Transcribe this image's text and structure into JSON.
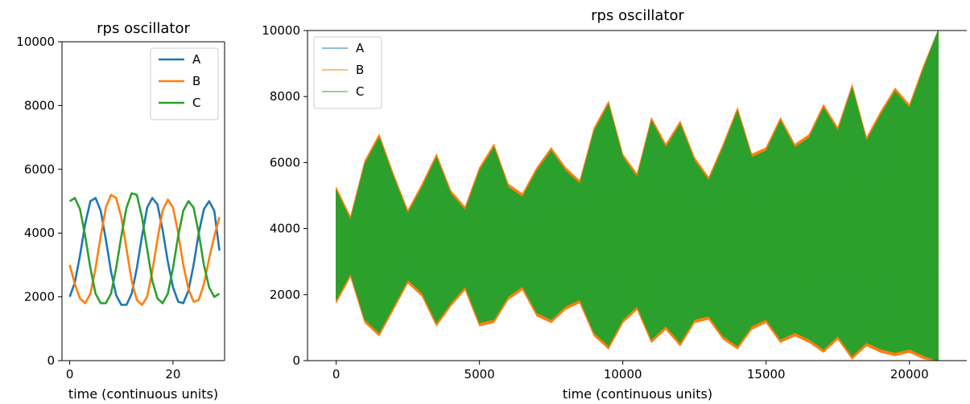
{
  "chart_data": [
    {
      "type": "line",
      "title": "rps oscillator",
      "xlabel": "time (continuous units)",
      "ylabel": "",
      "xlim": [
        -1.5,
        30
      ],
      "ylim": [
        0,
        10000
      ],
      "xticks": [
        0,
        20
      ],
      "yticks": [
        0,
        2000,
        4000,
        6000,
        8000,
        10000
      ],
      "legend_position": "upper right",
      "grid": false,
      "x": [
        0,
        1,
        2,
        3,
        4,
        5,
        6,
        7,
        8,
        9,
        10,
        11,
        12,
        13,
        14,
        15,
        16,
        17,
        18,
        19,
        20,
        21,
        22,
        23,
        24,
        25,
        26,
        27,
        28,
        29
      ],
      "series": [
        {
          "name": "A",
          "color": "#1f77b4",
          "values": [
            2000,
            2450,
            3300,
            4300,
            5000,
            5100,
            4700,
            3800,
            2800,
            2050,
            1750,
            1750,
            2100,
            2900,
            3900,
            4800,
            5100,
            4900,
            4100,
            3100,
            2300,
            1850,
            1800,
            2200,
            3000,
            4000,
            4750,
            5000,
            4700,
            3450
          ]
        },
        {
          "name": "B",
          "color": "#ff7f0e",
          "values": [
            3000,
            2400,
            1950,
            1800,
            2100,
            2900,
            3900,
            4800,
            5200,
            5100,
            4500,
            3500,
            2500,
            1900,
            1750,
            2000,
            2800,
            3800,
            4700,
            5050,
            4800,
            4000,
            3000,
            2250,
            1850,
            1900,
            2400,
            3200,
            3900,
            4500
          ]
        },
        {
          "name": "C",
          "color": "#2ca02c",
          "values": [
            5000,
            5100,
            4750,
            3900,
            2900,
            2100,
            1800,
            1800,
            2100,
            2900,
            3900,
            4800,
            5250,
            5200,
            4500,
            3500,
            2500,
            1950,
            1800,
            2100,
            2900,
            3900,
            4700,
            5000,
            4800,
            4000,
            3000,
            2300,
            2000,
            2100
          ]
        }
      ]
    },
    {
      "type": "line",
      "title": "rps oscillator",
      "xlabel": "time (continuous units)",
      "ylabel": "",
      "xlim": [
        -1000,
        22000
      ],
      "ylim": [
        0,
        10000
      ],
      "xticks": [
        0,
        5000,
        10000,
        15000,
        20000
      ],
      "yticks": [
        0,
        2000,
        4000,
        6000,
        8000,
        10000
      ],
      "legend_position": "upper left",
      "grid": false,
      "note_envelope": "dense oscillation; band bounded by min/max envelope below",
      "x": [
        0,
        500,
        1000,
        1500,
        2000,
        2500,
        3000,
        3500,
        4000,
        4500,
        5000,
        5500,
        6000,
        6500,
        7000,
        7500,
        8000,
        8500,
        9000,
        9500,
        10000,
        10500,
        11000,
        11500,
        12000,
        12500,
        13000,
        13500,
        14000,
        14500,
        15000,
        15500,
        16000,
        16500,
        17000,
        17500,
        18000,
        18500,
        19000,
        19500,
        20000,
        20500,
        21000
      ],
      "series": [
        {
          "name": "A",
          "color": "#1f77b4",
          "upper": [
            5200,
            4300,
            6000,
            6800,
            5600,
            4500,
            5300,
            6200,
            5100,
            4600,
            5800,
            6500,
            5300,
            5000,
            5800,
            6400,
            5800,
            5400,
            7000,
            7800,
            6200,
            5600,
            7300,
            6500,
            7200,
            6100,
            5500,
            6500,
            7600,
            6200,
            6400,
            7300,
            6500,
            6800,
            7700,
            7000,
            8300,
            6700,
            7500,
            8200,
            7700,
            8900,
            10000
          ],
          "lower": [
            1800,
            2600,
            1200,
            800,
            1600,
            2400,
            2000,
            1100,
            1700,
            2200,
            1100,
            1200,
            1900,
            2200,
            1400,
            1200,
            1600,
            1800,
            800,
            400,
            1200,
            1600,
            600,
            1000,
            500,
            1200,
            1300,
            700,
            400,
            1000,
            1200,
            600,
            800,
            600,
            300,
            700,
            100,
            500,
            300,
            200,
            300,
            100,
            0
          ]
        },
        {
          "name": "B",
          "color": "#ff7f0e",
          "upper": [
            5250,
            4350,
            6050,
            6850,
            5650,
            4550,
            5350,
            6250,
            5150,
            4650,
            5850,
            6550,
            5350,
            5050,
            5850,
            6450,
            5850,
            5450,
            7050,
            7850,
            6250,
            5650,
            7350,
            6550,
            7250,
            6150,
            5550,
            6550,
            7650,
            6250,
            6450,
            7350,
            6550,
            6850,
            7750,
            7050,
            8350,
            6750,
            7550,
            8250,
            7750,
            8950,
            10000
          ],
          "lower": [
            1750,
            2550,
            1150,
            750,
            1550,
            2350,
            1950,
            1050,
            1650,
            2150,
            1050,
            1150,
            1850,
            2150,
            1350,
            1150,
            1550,
            1750,
            750,
            350,
            1150,
            1550,
            550,
            950,
            450,
            1150,
            1250,
            650,
            350,
            950,
            1150,
            550,
            750,
            550,
            250,
            650,
            50,
            450,
            250,
            150,
            250,
            50,
            0
          ]
        },
        {
          "name": "C",
          "color": "#2ca02c",
          "upper": [
            5150,
            4250,
            5950,
            6750,
            5550,
            4450,
            5250,
            6150,
            5050,
            4550,
            5750,
            6450,
            5250,
            4950,
            5750,
            6350,
            5750,
            5350,
            6950,
            7750,
            6150,
            5550,
            7250,
            6450,
            7150,
            6050,
            5450,
            6450,
            7550,
            6150,
            6350,
            7250,
            6450,
            6750,
            7650,
            6950,
            8250,
            6650,
            7450,
            8150,
            7650,
            8850,
            10000
          ],
          "lower": [
            1850,
            2650,
            1250,
            850,
            1650,
            2450,
            2050,
            1150,
            1750,
            2250,
            1150,
            1250,
            1950,
            2250,
            1450,
            1250,
            1650,
            1850,
            850,
            450,
            1250,
            1650,
            650,
            1050,
            550,
            1250,
            1350,
            750,
            450,
            1050,
            1250,
            650,
            850,
            650,
            350,
            750,
            150,
            550,
            350,
            250,
            350,
            150,
            0
          ]
        }
      ]
    }
  ]
}
